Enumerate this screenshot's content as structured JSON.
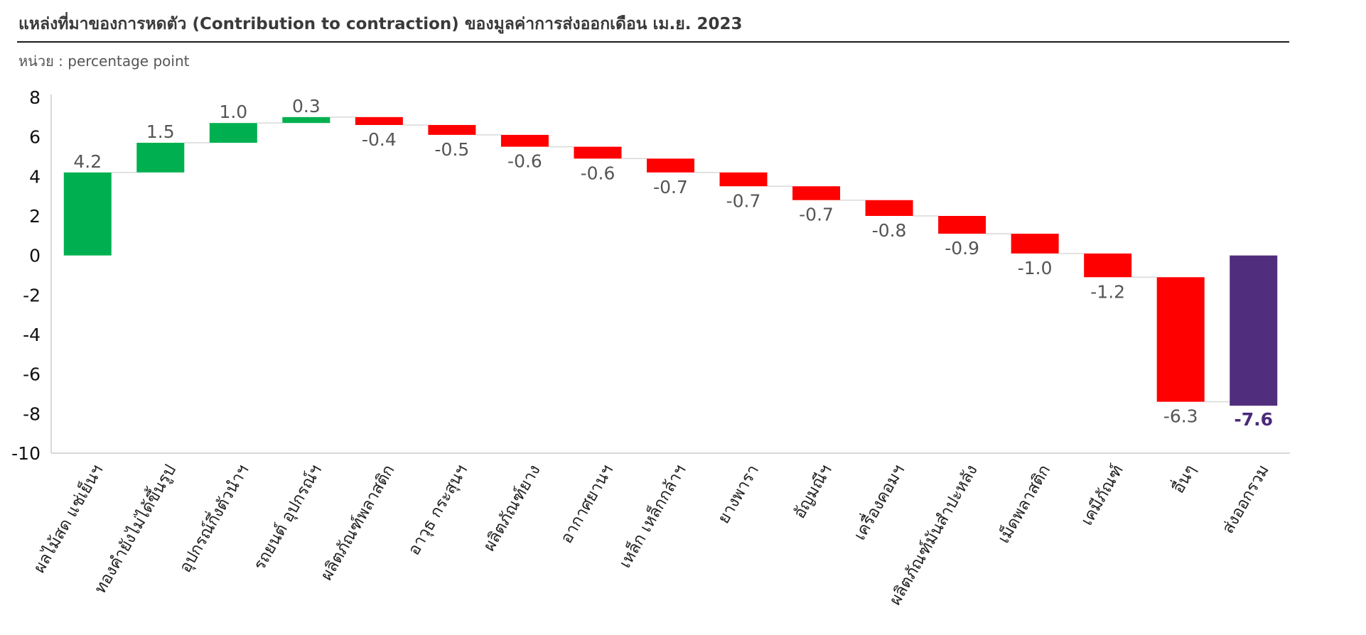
{
  "chart_data": {
    "type": "bar",
    "subtype": "waterfall",
    "title": "แหล่งที่มาของการหดตัว (Contribution to contraction) ของมูลค่าการส่งออกเดือน เม.ย. 2023",
    "unit_label": "หน่วย : percentage point",
    "categories": [
      "ผลไม้สด แช่เย็นฯ",
      "ทองคำยังไม่ได้ขึ้นรูป",
      "อุปกรณ์กึ่งตัวนำฯ",
      "รถยนต์ อุปกรณ์ฯ",
      "ผลิตภัณฑ์พลาสติก",
      "อาวุธ กระสุนฯ",
      "ผลิตภัณฑ์ยาง",
      "อากาศยานฯ",
      "เหล็ก เหล็กกล้าฯ",
      "ยางพารา",
      "อัญมณีฯ",
      "เครื่องคอมฯ",
      "ผลิตภัณฑ์มันสำปะหลัง",
      "เม็ดพลาสติก",
      "เคมีภัณฑ์",
      "อื่นๆ",
      "ส่งออกรวม"
    ],
    "values": [
      4.2,
      1.5,
      1.0,
      0.3,
      -0.4,
      -0.5,
      -0.6,
      -0.6,
      -0.7,
      -0.7,
      -0.7,
      -0.8,
      -0.9,
      -1.0,
      -1.2,
      -6.3,
      -7.6
    ],
    "value_labels": [
      "4.2",
      "1.5",
      "1.0",
      "0.3",
      "-0.4",
      "-0.5",
      "-0.6",
      "-0.6",
      "-0.7",
      "-0.7",
      "-0.7",
      "-0.8",
      "-0.9",
      "-1.0",
      "-1.2",
      "-6.3",
      "-7.6"
    ],
    "total_index": 16,
    "ylim": [
      -10,
      8
    ],
    "yticks": [
      8,
      6,
      4,
      2,
      0,
      -2,
      -4,
      -6,
      -8,
      -10
    ],
    "grid": false,
    "colors": {
      "increase": "#00b050",
      "decrease": "#ff0000",
      "total": "#512d7e",
      "connector": "#d9d9d9",
      "axis": "#d9d9d9"
    }
  }
}
